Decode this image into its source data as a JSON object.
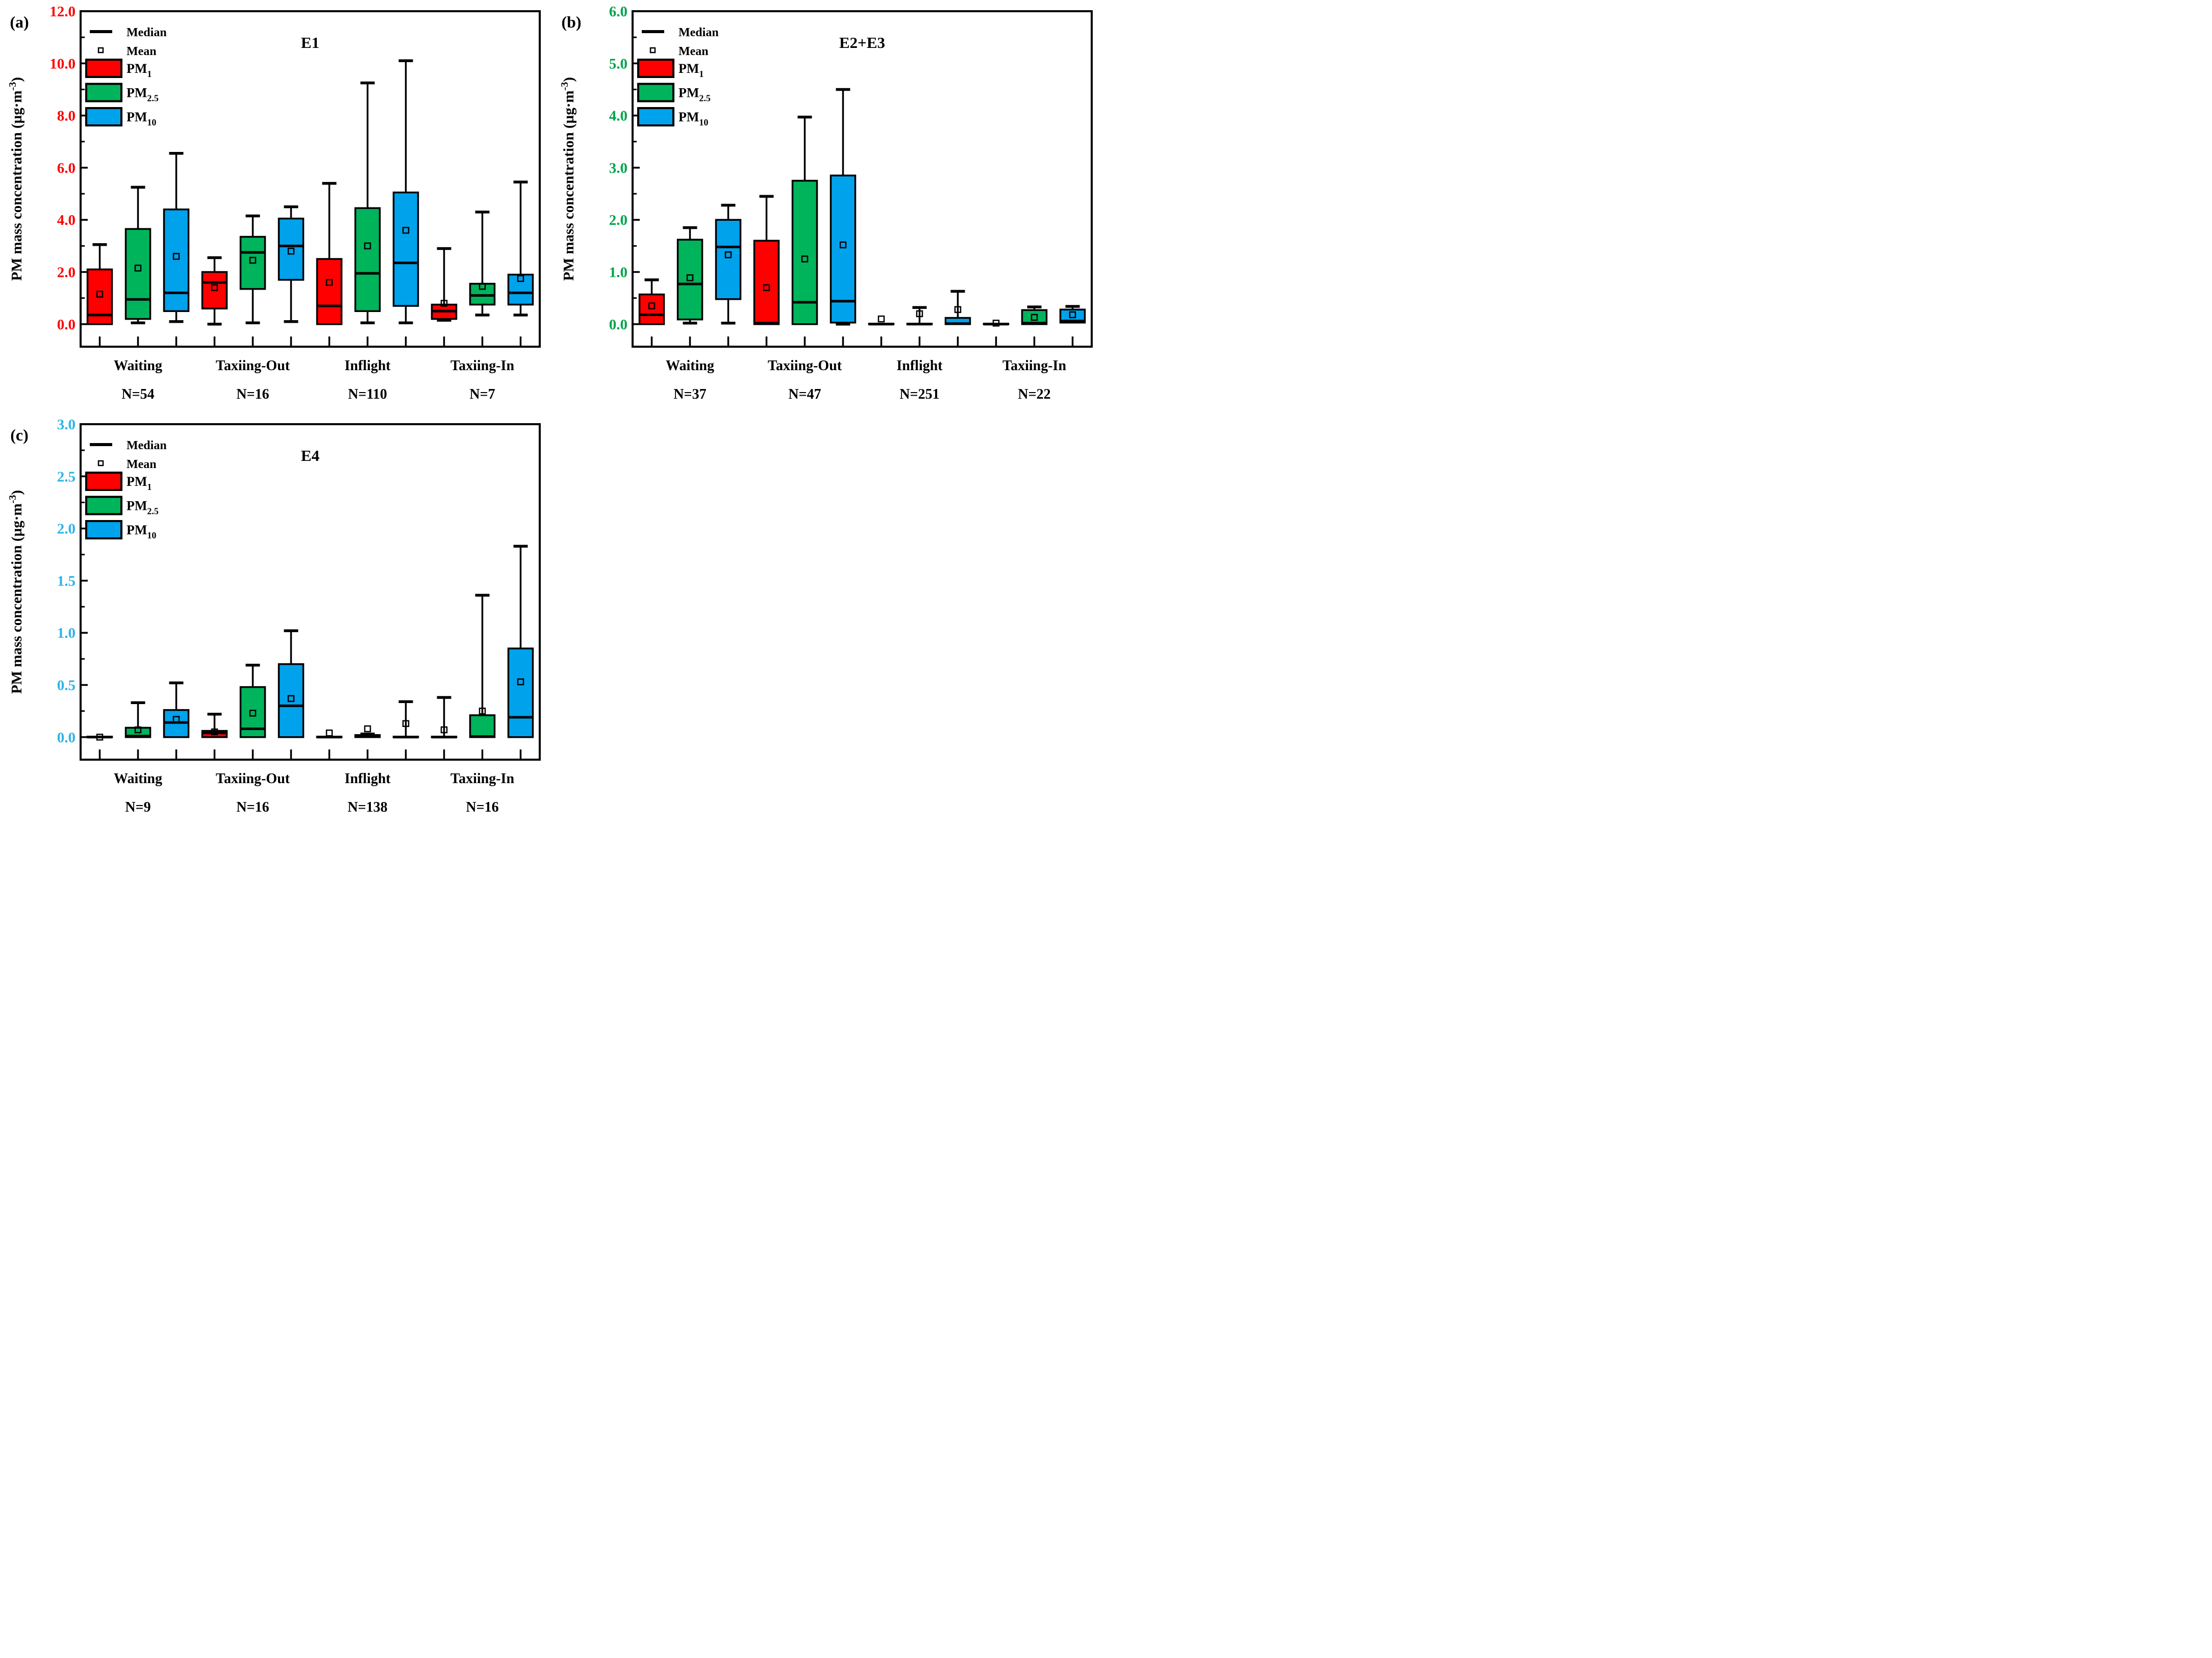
{
  "chart_data": {
    "type": "box",
    "ylabel": {
      "text": "PM mass concentration (µg·m",
      "sup": "-3",
      "close": ")"
    },
    "legend": {
      "median": "Median",
      "mean": "Mean"
    },
    "series": [
      {
        "name": "PM",
        "sub": "1",
        "color": "#FE0000"
      },
      {
        "name": "PM",
        "sub": "2.5",
        "color": "#00B45B"
      },
      {
        "name": "PM",
        "sub": "10",
        "color": "#00A2EC"
      }
    ],
    "layout_hints": {
      "legend_position": "top-left inside",
      "grid": false,
      "ticks": "inward"
    },
    "panels": [
      {
        "id": "a",
        "tag": "(a)",
        "title": "E1",
        "axis_color": "#FF0000",
        "ymax": 12,
        "ymajor": 2,
        "yminor": 1,
        "ytick_labels": [
          "0.0",
          "2.0",
          "4.0",
          "6.0",
          "8.0",
          "10.0",
          "12.0"
        ],
        "groups": [
          {
            "label": "Waiting",
            "n": "N=54",
            "boxes": [
              {
                "low": 0.0,
                "q1": 0.0,
                "med": 0.35,
                "q3": 2.1,
                "high": 3.05,
                "mean": 1.15
              },
              {
                "low": 0.05,
                "q1": 0.2,
                "med": 0.95,
                "q3": 3.65,
                "high": 5.25,
                "mean": 2.15
              },
              {
                "low": 0.1,
                "q1": 0.5,
                "med": 1.2,
                "q3": 4.4,
                "high": 6.55,
                "mean": 2.6
              }
            ]
          },
          {
            "label": "Taxiing-Out",
            "n": "N=16",
            "boxes": [
              {
                "low": 0.0,
                "q1": 0.6,
                "med": 1.6,
                "q3": 2.0,
                "high": 2.55,
                "mean": 1.4
              },
              {
                "low": 0.05,
                "q1": 1.35,
                "med": 2.75,
                "q3": 3.35,
                "high": 4.15,
                "mean": 2.45
              },
              {
                "low": 0.1,
                "q1": 1.7,
                "med": 3.0,
                "q3": 4.05,
                "high": 4.5,
                "mean": 2.8
              }
            ]
          },
          {
            "label": "Inflight",
            "n": "N=110",
            "boxes": [
              {
                "low": 0.0,
                "q1": 0.0,
                "med": 0.7,
                "q3": 2.5,
                "high": 5.4,
                "mean": 1.6
              },
              {
                "low": 0.05,
                "q1": 0.5,
                "med": 1.95,
                "q3": 4.45,
                "high": 9.25,
                "mean": 3.0
              },
              {
                "low": 0.05,
                "q1": 0.7,
                "med": 2.35,
                "q3": 5.05,
                "high": 10.1,
                "mean": 3.6
              }
            ]
          },
          {
            "label": "Taxiing-In",
            "n": "N=7",
            "boxes": [
              {
                "low": 0.15,
                "q1": 0.2,
                "med": 0.5,
                "q3": 0.75,
                "high": 2.9,
                "mean": 0.8
              },
              {
                "low": 0.35,
                "q1": 0.75,
                "med": 1.1,
                "q3": 1.55,
                "high": 4.3,
                "mean": 1.45
              },
              {
                "low": 0.35,
                "q1": 0.75,
                "med": 1.2,
                "q3": 1.9,
                "high": 5.45,
                "mean": 1.75
              }
            ]
          }
        ]
      },
      {
        "id": "b",
        "tag": "(b)",
        "title": "E2+E3",
        "axis_color": "#00A44A",
        "ymax": 6,
        "ymajor": 1,
        "yminor": 0.5,
        "ytick_labels": [
          "0.0",
          "1.0",
          "2.0",
          "3.0",
          "4.0",
          "5.0",
          "6.0"
        ],
        "groups": [
          {
            "label": "Waiting",
            "n": "N=37",
            "boxes": [
              {
                "low": 0.0,
                "q1": 0.0,
                "med": 0.18,
                "q3": 0.57,
                "high": 0.85,
                "mean": 0.35
              },
              {
                "low": 0.02,
                "q1": 0.09,
                "med": 0.77,
                "q3": 1.62,
                "high": 1.85,
                "mean": 0.89
              },
              {
                "low": 0.02,
                "q1": 0.48,
                "med": 1.48,
                "q3": 2.0,
                "high": 2.28,
                "mean": 1.33
              }
            ]
          },
          {
            "label": "Taxiing-Out",
            "n": "N=47",
            "boxes": [
              {
                "low": 0.0,
                "q1": 0.0,
                "med": 0.02,
                "q3": 1.6,
                "high": 2.45,
                "mean": 0.7
              },
              {
                "low": 0.0,
                "q1": 0.0,
                "med": 0.42,
                "q3": 2.75,
                "high": 3.97,
                "mean": 1.25
              },
              {
                "low": 0.0,
                "q1": 0.03,
                "med": 0.44,
                "q3": 2.85,
                "high": 4.5,
                "mean": 1.52
              }
            ]
          },
          {
            "label": "Inflight",
            "n": "N=251",
            "boxes": [
              {
                "low": 0.0,
                "q1": 0.0,
                "med": 0.0,
                "q3": 0.01,
                "high": 0.01,
                "mean": 0.1
              },
              {
                "low": 0.0,
                "q1": 0.0,
                "med": 0.0,
                "q3": 0.01,
                "high": 0.32,
                "mean": 0.2
              },
              {
                "low": 0.0,
                "q1": 0.0,
                "med": 0.01,
                "q3": 0.12,
                "high": 0.63,
                "mean": 0.28
              }
            ]
          },
          {
            "label": "Taxiing-In",
            "n": "N=22",
            "boxes": [
              {
                "low": 0.0,
                "q1": 0.0,
                "med": 0.0,
                "q3": 0.01,
                "high": 0.01,
                "mean": 0.02
              },
              {
                "low": 0.0,
                "q1": 0.0,
                "med": 0.02,
                "q3": 0.27,
                "high": 0.33,
                "mean": 0.13
              },
              {
                "low": 0.03,
                "q1": 0.03,
                "med": 0.06,
                "q3": 0.28,
                "high": 0.34,
                "mean": 0.18
              }
            ]
          }
        ]
      },
      {
        "id": "c",
        "tag": "(c)",
        "title": "E4",
        "axis_color": "#2FB3E8",
        "ymax": 3,
        "ymajor": 0.5,
        "yminor": 0.25,
        "ytick_labels": [
          "0.0",
          "0.5",
          "1.0",
          "1.5",
          "2.0",
          "2.5",
          "3.0"
        ],
        "groups": [
          {
            "label": "Waiting",
            "n": "N=9",
            "boxes": [
              {
                "low": 0.0,
                "q1": 0.0,
                "med": 0.0,
                "q3": 0.005,
                "high": 0.005,
                "mean": 0.0
              },
              {
                "low": 0.0,
                "q1": 0.0,
                "med": 0.01,
                "q3": 0.09,
                "high": 0.33,
                "mean": 0.07
              },
              {
                "low": 0.0,
                "q1": 0.0,
                "med": 0.14,
                "q3": 0.26,
                "high": 0.52,
                "mean": 0.17
              }
            ]
          },
          {
            "label": "Taxiing-Out",
            "n": "N=16",
            "boxes": [
              {
                "low": 0.0,
                "q1": 0.0,
                "med": 0.04,
                "q3": 0.06,
                "high": 0.22,
                "mean": 0.05
              },
              {
                "low": 0.0,
                "q1": 0.0,
                "med": 0.08,
                "q3": 0.48,
                "high": 0.69,
                "mean": 0.23
              },
              {
                "low": 0.0,
                "q1": 0.0,
                "med": 0.3,
                "q3": 0.7,
                "high": 1.02,
                "mean": 0.37
              }
            ]
          },
          {
            "label": "Inflight",
            "n": "N=138",
            "boxes": [
              {
                "low": 0.0,
                "q1": 0.0,
                "med": 0.0,
                "q3": 0.005,
                "high": 0.005,
                "mean": 0.04
              },
              {
                "low": 0.0,
                "q1": 0.0,
                "med": 0.005,
                "q3": 0.02,
                "high": 0.03,
                "mean": 0.08
              },
              {
                "low": 0.0,
                "q1": 0.0,
                "med": 0.0,
                "q3": 0.005,
                "high": 0.34,
                "mean": 0.13
              }
            ]
          },
          {
            "label": "Taxiing-In",
            "n": "N=16",
            "boxes": [
              {
                "low": 0.0,
                "q1": 0.0,
                "med": 0.0,
                "q3": 0.005,
                "high": 0.38,
                "mean": 0.07
              },
              {
                "low": 0.0,
                "q1": 0.0,
                "med": 0.005,
                "q3": 0.21,
                "high": 1.36,
                "mean": 0.25
              },
              {
                "low": 0.0,
                "q1": 0.0,
                "med": 0.19,
                "q3": 0.85,
                "high": 1.83,
                "mean": 0.53
              }
            ]
          }
        ]
      }
    ]
  }
}
